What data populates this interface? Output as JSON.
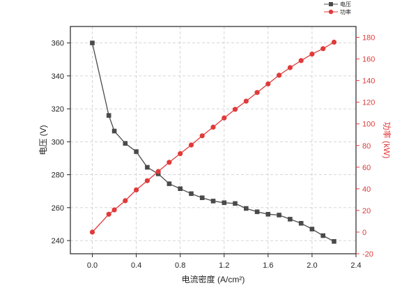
{
  "chart_data": {
    "type": "line",
    "xlabel": "电流密度 (A/cm²)",
    "ylabel_left": "电压 (V)",
    "ylabel_right": "功率 (kW)",
    "xlim": [
      -0.2,
      2.4
    ],
    "xticks": [
      0.0,
      0.4,
      0.8,
      1.2,
      1.6,
      2.0,
      2.4
    ],
    "xtick_labels": [
      "0.0",
      "0.4",
      "0.8",
      "1.2",
      "1.6",
      "2.0",
      "2.4"
    ],
    "ylim_left": [
      232,
      370
    ],
    "yticks_left": [
      240,
      260,
      280,
      300,
      320,
      340,
      360
    ],
    "ylim_right": [
      -20,
      190
    ],
    "yticks_right": [
      -20,
      0,
      20,
      40,
      60,
      80,
      100,
      120,
      140,
      160,
      180
    ],
    "grid": true,
    "legend_position": "top-right",
    "series": [
      {
        "name": "电压",
        "axis": "left",
        "color": "#4a4a4a",
        "marker": "square",
        "x": [
          0.0,
          0.15,
          0.2,
          0.3,
          0.4,
          0.5,
          0.6,
          0.7,
          0.8,
          0.9,
          1.0,
          1.1,
          1.2,
          1.3,
          1.4,
          1.5,
          1.6,
          1.7,
          1.8,
          1.9,
          2.0,
          2.1,
          2.2
        ],
        "values": [
          360,
          316,
          306.5,
          299,
          294,
          284.5,
          280.5,
          274.5,
          271.5,
          268.5,
          266,
          264,
          263,
          262.5,
          259.5,
          257.5,
          256,
          255.5,
          253,
          250.5,
          247,
          243,
          239.5
        ]
      },
      {
        "name": "功率",
        "axis": "right",
        "color": "#e03a3a",
        "marker": "circle",
        "x": [
          0.0,
          0.15,
          0.2,
          0.3,
          0.4,
          0.5,
          0.6,
          0.7,
          0.8,
          0.9,
          1.0,
          1.1,
          1.2,
          1.3,
          1.4,
          1.5,
          1.6,
          1.7,
          1.8,
          1.9,
          2.0,
          2.1,
          2.2
        ],
        "values": [
          0,
          16.5,
          20.5,
          29,
          39,
          47.5,
          56,
          64.5,
          72.5,
          80.5,
          89,
          97,
          105.5,
          113.5,
          121,
          129,
          137,
          145,
          152,
          158.5,
          164.5,
          169.5,
          175.5
        ]
      }
    ]
  }
}
